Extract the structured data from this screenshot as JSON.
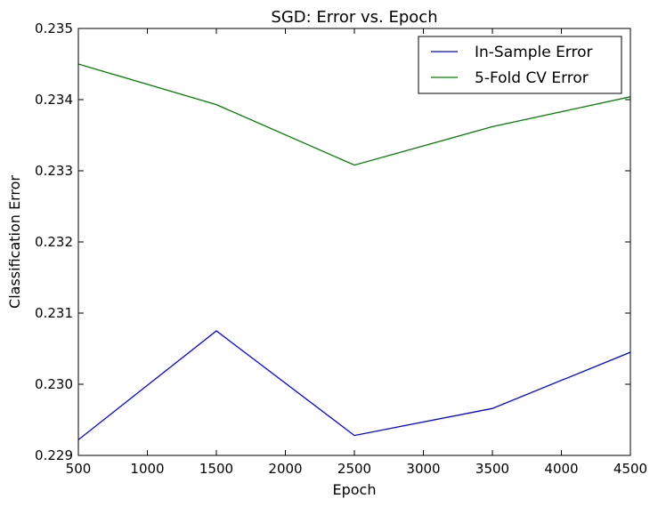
{
  "chart_data": {
    "type": "line",
    "title": "SGD: Error vs. Epoch",
    "xlabel": "Epoch",
    "ylabel": "Classification Error",
    "xlim": [
      500,
      4500
    ],
    "ylim": [
      0.229,
      0.235
    ],
    "xticks": [
      "500",
      "1000",
      "1500",
      "2000",
      "2500",
      "3000",
      "3500",
      "4000",
      "4500"
    ],
    "yticks": [
      "0.229",
      "0.230",
      "0.231",
      "0.232",
      "0.233",
      "0.234",
      "0.235"
    ],
    "x": [
      500,
      1500,
      2500,
      3500,
      4500
    ],
    "series": [
      {
        "name": "In-Sample Error",
        "color": "#0000ff",
        "values": [
          0.22922,
          0.23075,
          0.22928,
          0.22966,
          0.23045
        ]
      },
      {
        "name": "5-Fold CV Error",
        "color": "#008000",
        "values": [
          0.2345,
          0.23393,
          0.23308,
          0.23362,
          0.23404
        ]
      }
    ],
    "legend": "top-right",
    "grid": false
  }
}
